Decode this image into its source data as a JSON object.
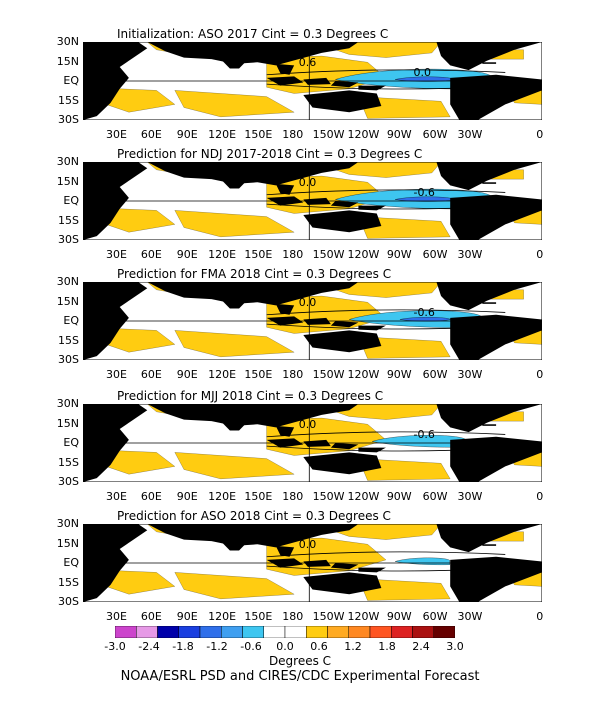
{
  "panels": [
    {
      "title": "Initialization: ASO 2017  Cint = 0.3 Degrees C",
      "labels": [
        "0.6",
        "0.0"
      ]
    },
    {
      "title": "Prediction for NDJ 2017-2018  Cint = 0.3 Degrees C",
      "labels": [
        "0.0",
        "-0.6"
      ]
    },
    {
      "title": "Prediction for FMA 2018  Cint = 0.3 Degrees C",
      "labels": [
        "0.0",
        "-0.6"
      ]
    },
    {
      "title": "Prediction for MJJ 2018  Cint = 0.3 Degrees C",
      "labels": [
        "0.0",
        "-0.6"
      ]
    },
    {
      "title": "Prediction for ASO 2018  Cint = 0.3 Degrees C",
      "labels": [
        "0.0"
      ]
    }
  ],
  "lat_labels": [
    "30N",
    "15N",
    "EQ",
    "15S",
    "30S"
  ],
  "lon_labels": [
    "30E",
    "60E",
    "90E",
    "120E",
    "150E",
    "180",
    "150W",
    "120W",
    "90W",
    "60W",
    "30W",
    "0"
  ],
  "colorbar": {
    "ticks": [
      "-3.0",
      "-2.4",
      "-1.8",
      "-1.2",
      "-0.6",
      "0.0",
      "0.6",
      "1.2",
      "1.8",
      "2.4",
      "3.0"
    ],
    "colors": [
      "#cc44cc",
      "#e699e6",
      "#0000aa",
      "#1a3fe0",
      "#2f6fea",
      "#3f9ff0",
      "#3ec6f0",
      "#ffffff",
      "#ffffff",
      "#ffcc11",
      "#ffaa22",
      "#ff8822",
      "#ff5522",
      "#dd2222",
      "#aa1111",
      "#660000"
    ],
    "label": "Degrees C"
  },
  "footer": "NOAA/ESRL PSD and CIRES/CDC Experimental Forecast",
  "colors": {
    "warm": "#ffcc11",
    "cool": "#3ec6f0",
    "cooler": "#2f6fea",
    "land": "#000000"
  }
}
